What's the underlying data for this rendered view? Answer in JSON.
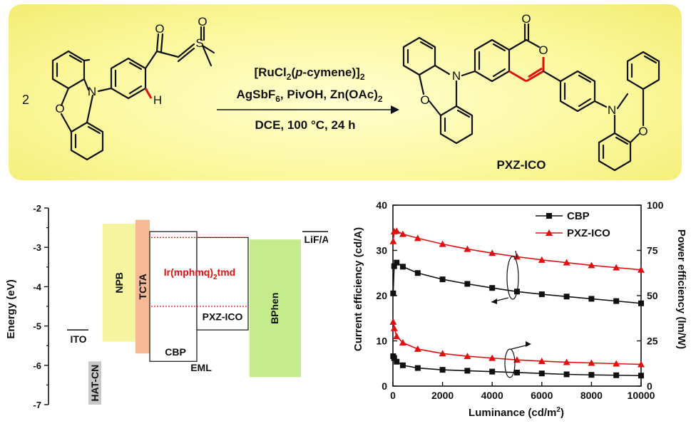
{
  "scheme": {
    "stoich": "2",
    "reagent_line1": "[RuCl",
    "reagent_line1_sub": "2",
    "reagent_line1_italic": "p",
    "reagent_line1_mid": "-cymene)]",
    "reagent_line1_open": "(",
    "reagent_line1_sub2": "2",
    "reagent_line2_a": "AgSbF",
    "reagent_line2_sub": "6",
    "reagent_line2_b": ", PivOH, Zn(OAc)",
    "reagent_line2_sub2": "2",
    "conditions": "DCE, 100 °C, 24 h",
    "product_name": "PXZ-ICO",
    "atom_O": "O",
    "atom_N": "N",
    "atom_S": "S",
    "atom_H": "H",
    "highlight_color": "#e01010"
  },
  "energy_diagram": {
    "ylabel": "Energy (eV)",
    "yticks": [
      "-2",
      "-3",
      "-4",
      "-5",
      "-6",
      "-7"
    ],
    "ylim": [
      -7,
      -2
    ],
    "layers": [
      {
        "name": "ITO",
        "top": -5.1,
        "bottom": -5.1,
        "color": "#ffffff",
        "kind": "line"
      },
      {
        "name": "HAT-CN",
        "top": -5.9,
        "bottom": -7.0,
        "color": "#c8c8c8",
        "kind": "bar"
      },
      {
        "name": "NPB",
        "top": -2.4,
        "bottom": -5.4,
        "color": "#f5f5a0",
        "kind": "bar"
      },
      {
        "name": "TCTA",
        "top": -2.3,
        "bottom": -5.7,
        "color": "#f7b894",
        "kind": "bar"
      },
      {
        "name": "CBP",
        "top": -2.6,
        "bottom": -5.9,
        "color": "#ffffff",
        "kind": "box"
      },
      {
        "name": "PXZ-ICO",
        "top": -2.75,
        "bottom": -5.1,
        "color": "#ffffff",
        "kind": "box"
      },
      {
        "name": "BPhen",
        "top": -2.8,
        "bottom": -6.3,
        "color": "#c5ec8c",
        "kind": "bar"
      },
      {
        "name": "LiF/Al",
        "top": -2.6,
        "bottom": -2.6,
        "color": "#ffffff",
        "kind": "line"
      }
    ],
    "dopant_label": "Ir(mphmq)",
    "dopant_sub": "2",
    "dopant_tail": "tmd",
    "dopant_levels": [
      -2.75,
      -4.5
    ],
    "dopant_color": "#e01010",
    "eml_label": "EML"
  },
  "chart_data": {
    "type": "scatter",
    "xlabel": "Luminance (cd/m",
    "xlabel_sup": "2",
    "xlabel_tail": ")",
    "ylabel_left": "Current efficiency (cd/A)",
    "ylabel_right": "Power efficiency (lm/W)",
    "xlim": [
      0,
      10000
    ],
    "ylim_left": [
      0,
      40
    ],
    "ylim_right": [
      0,
      100
    ],
    "xticks": [
      "0",
      "2000",
      "4000",
      "6000",
      "8000",
      "10000"
    ],
    "yticks_left": [
      "0",
      "10",
      "20",
      "30",
      "40"
    ],
    "yticks_right": [
      "0",
      "25",
      "50",
      "75",
      "100"
    ],
    "legend_position": "top-right",
    "series": [
      {
        "name": "CBP",
        "color": "#111111",
        "marker": "square",
        "axis": "left",
        "x": [
          10,
          50,
          150,
          400,
          1000,
          2000,
          3000,
          4000,
          5000,
          6000,
          7000,
          8000,
          9000,
          10000
        ],
        "y": [
          20.5,
          26.5,
          27.3,
          26.4,
          25.0,
          23.6,
          22.6,
          21.7,
          20.9,
          20.3,
          19.8,
          19.3,
          18.8,
          18.3
        ]
      },
      {
        "name": "PXZ-ICO",
        "color": "#e01010",
        "marker": "triangle",
        "axis": "left",
        "x": [
          10,
          50,
          150,
          400,
          1000,
          2000,
          3000,
          4000,
          5000,
          6000,
          7000,
          8000,
          9000,
          10000
        ],
        "y": [
          32.0,
          34.2,
          34.3,
          33.6,
          32.7,
          31.4,
          30.3,
          29.4,
          28.6,
          27.9,
          27.3,
          26.7,
          26.2,
          25.7
        ]
      },
      {
        "name": "",
        "color": "#111111",
        "marker": "square",
        "axis": "right",
        "x": [
          10,
          50,
          150,
          400,
          1000,
          2000,
          3000,
          4000,
          5000,
          6000,
          7000,
          8000,
          9000,
          10000
        ],
        "y": [
          16.5,
          15.5,
          13.5,
          11.5,
          10.0,
          9.0,
          8.5,
          8.0,
          7.5,
          7.0,
          6.5,
          6.2,
          6.0,
          5.8
        ]
      },
      {
        "name": "",
        "color": "#e01010",
        "marker": "triangle",
        "axis": "right",
        "x": [
          10,
          50,
          150,
          400,
          1000,
          2000,
          3000,
          4000,
          5000,
          6000,
          7000,
          8000,
          9000,
          10000
        ],
        "y": [
          35.5,
          32.0,
          27.5,
          24.0,
          20.5,
          18.0,
          16.5,
          15.5,
          14.5,
          13.8,
          13.2,
          12.8,
          12.4,
          12.0
        ]
      }
    ]
  }
}
